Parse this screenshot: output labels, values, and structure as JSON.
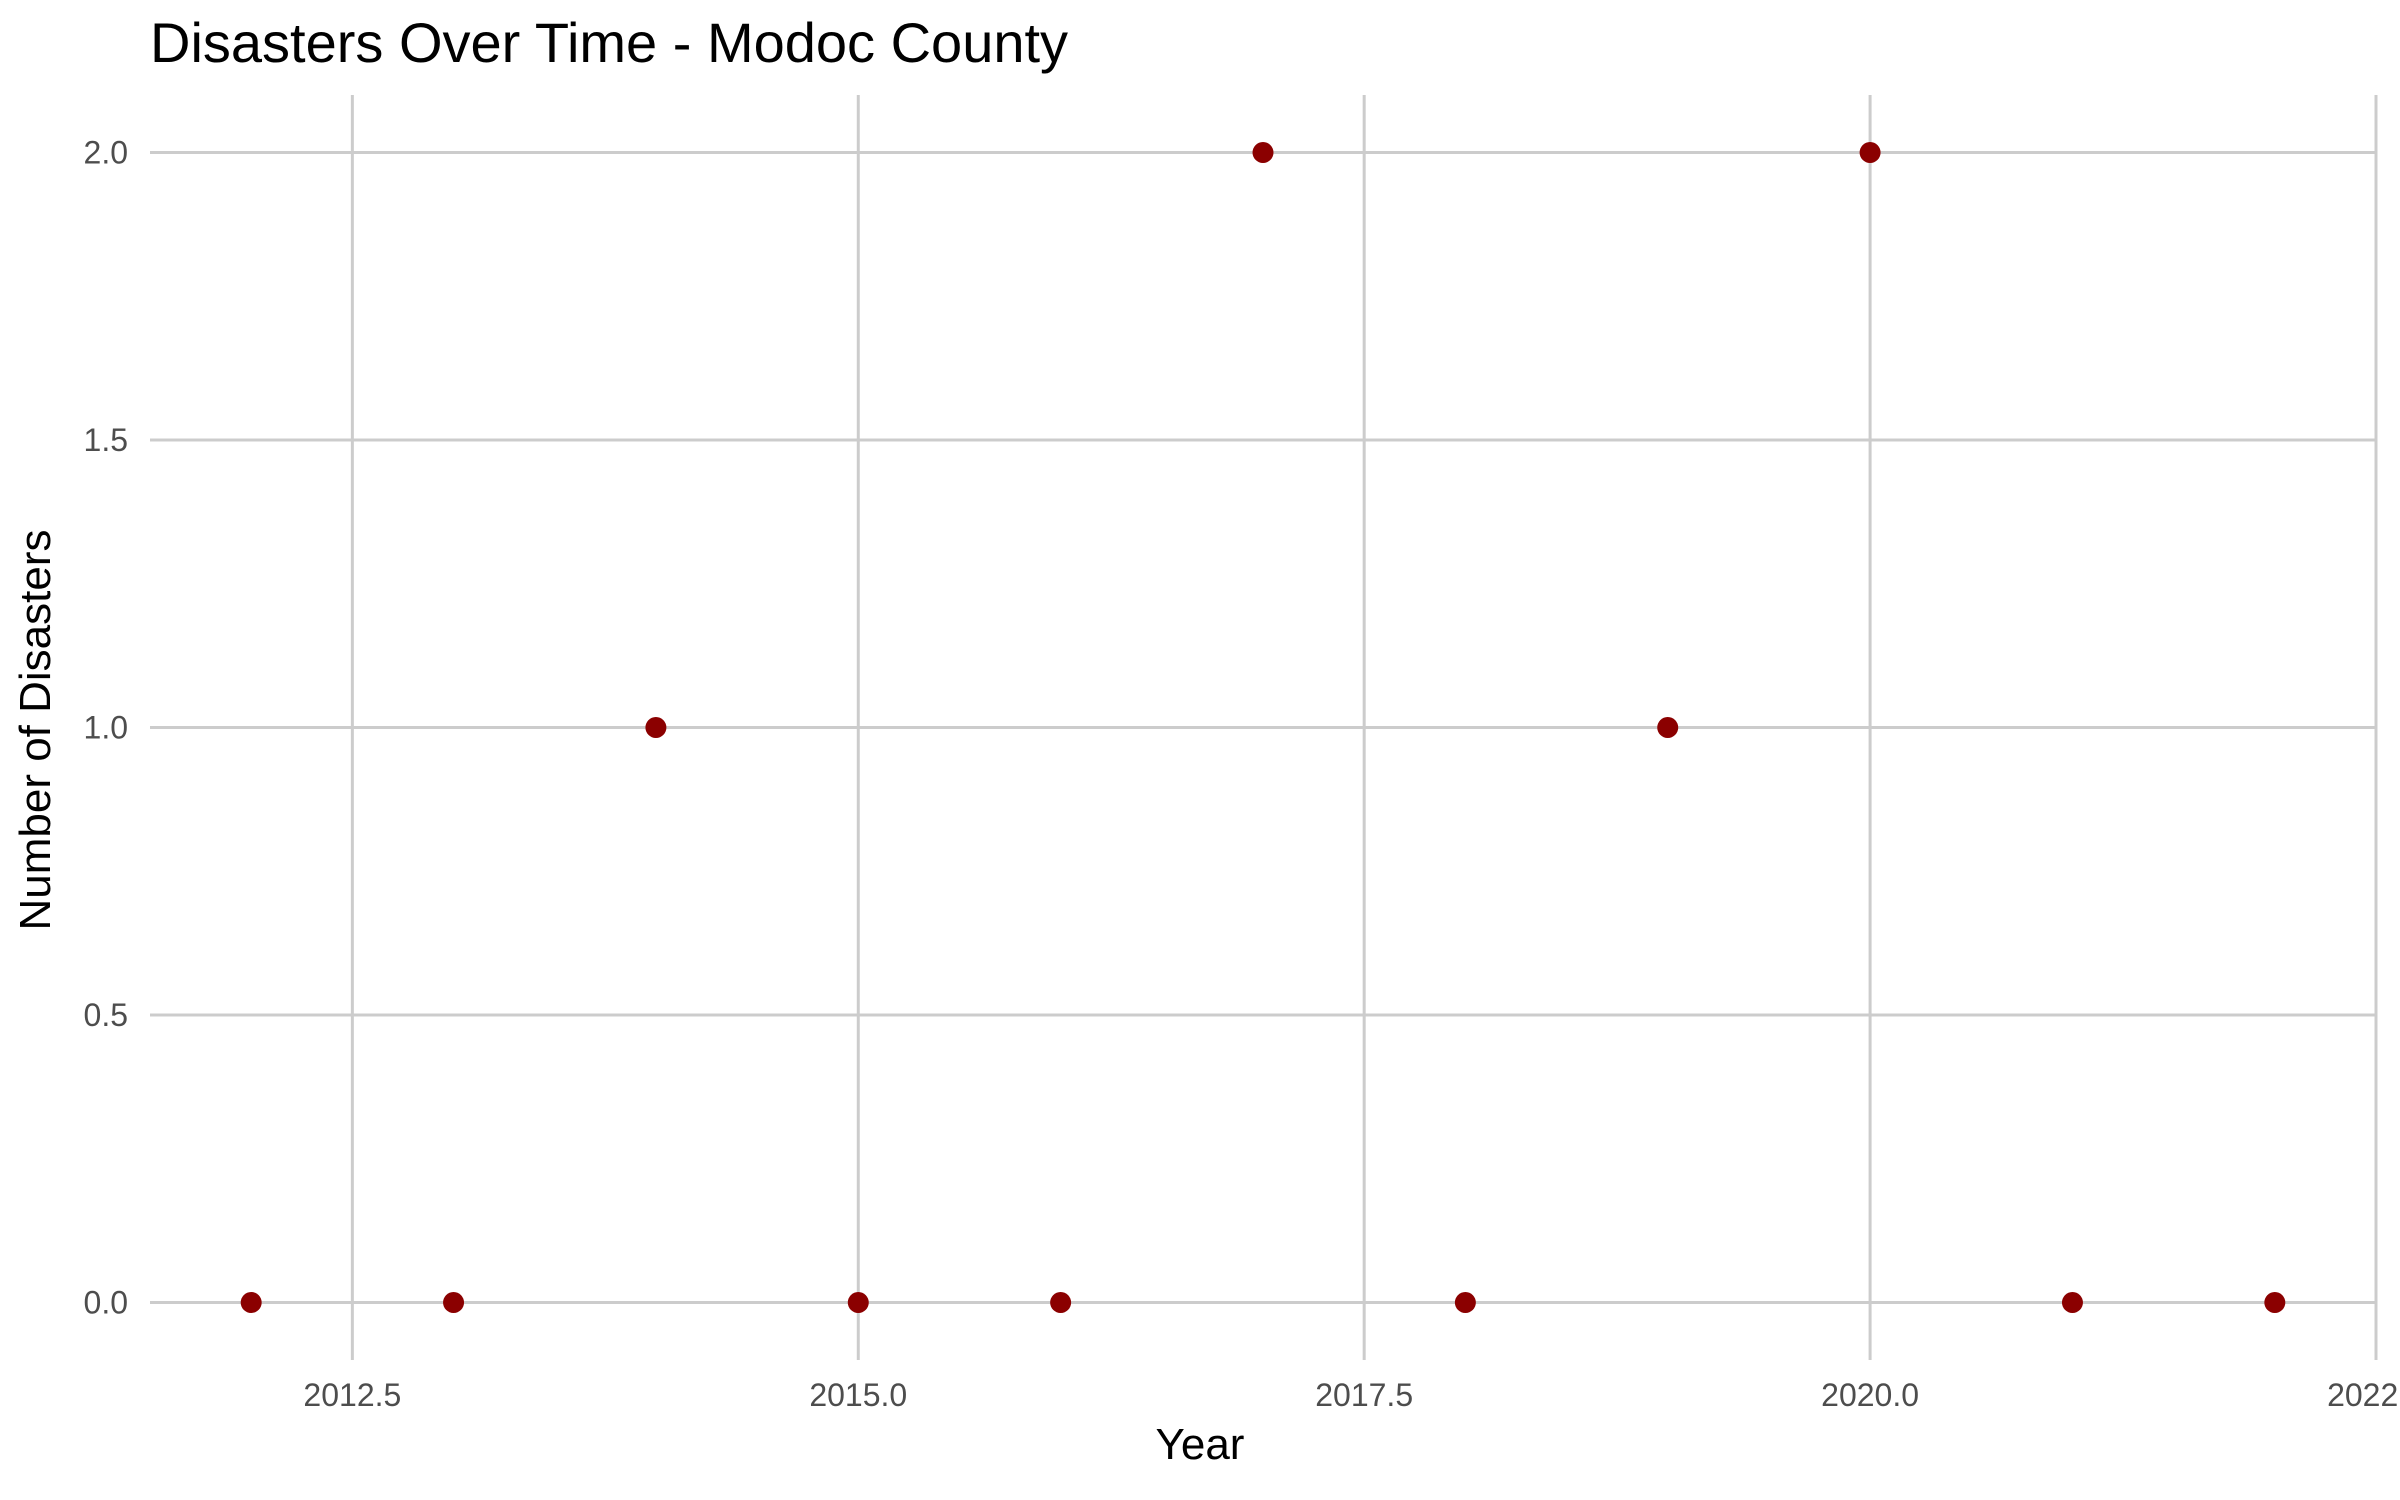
{
  "chart_data": {
    "type": "scatter",
    "title": "Disasters Over Time - Modoc County",
    "xlabel": "Year",
    "ylabel": "Number of Disasters",
    "xlim": [
      2011.5,
      2022.5
    ],
    "ylim": [
      -0.1,
      2.1
    ],
    "x_ticks": [
      2012.5,
      2015.0,
      2017.5,
      2020.0,
      2022.5
    ],
    "x_tick_labels": [
      "2012.5",
      "2015.0",
      "2017.5",
      "2020.0",
      "2022.5"
    ],
    "y_ticks": [
      0.0,
      0.5,
      1.0,
      1.5,
      2.0
    ],
    "y_tick_labels": [
      "0.0",
      "0.5",
      "1.0",
      "1.5",
      "2.0"
    ],
    "grid": true,
    "point_color": "#8B0000",
    "gridline_color": "#cccccc",
    "points": [
      {
        "x": 2012,
        "y": 0
      },
      {
        "x": 2013,
        "y": 0
      },
      {
        "x": 2014,
        "y": 1
      },
      {
        "x": 2015,
        "y": 0
      },
      {
        "x": 2016,
        "y": 0
      },
      {
        "x": 2017,
        "y": 2
      },
      {
        "x": 2018,
        "y": 0
      },
      {
        "x": 2019,
        "y": 1
      },
      {
        "x": 2020,
        "y": 2
      },
      {
        "x": 2021,
        "y": 0
      },
      {
        "x": 2022,
        "y": 0
      }
    ]
  }
}
